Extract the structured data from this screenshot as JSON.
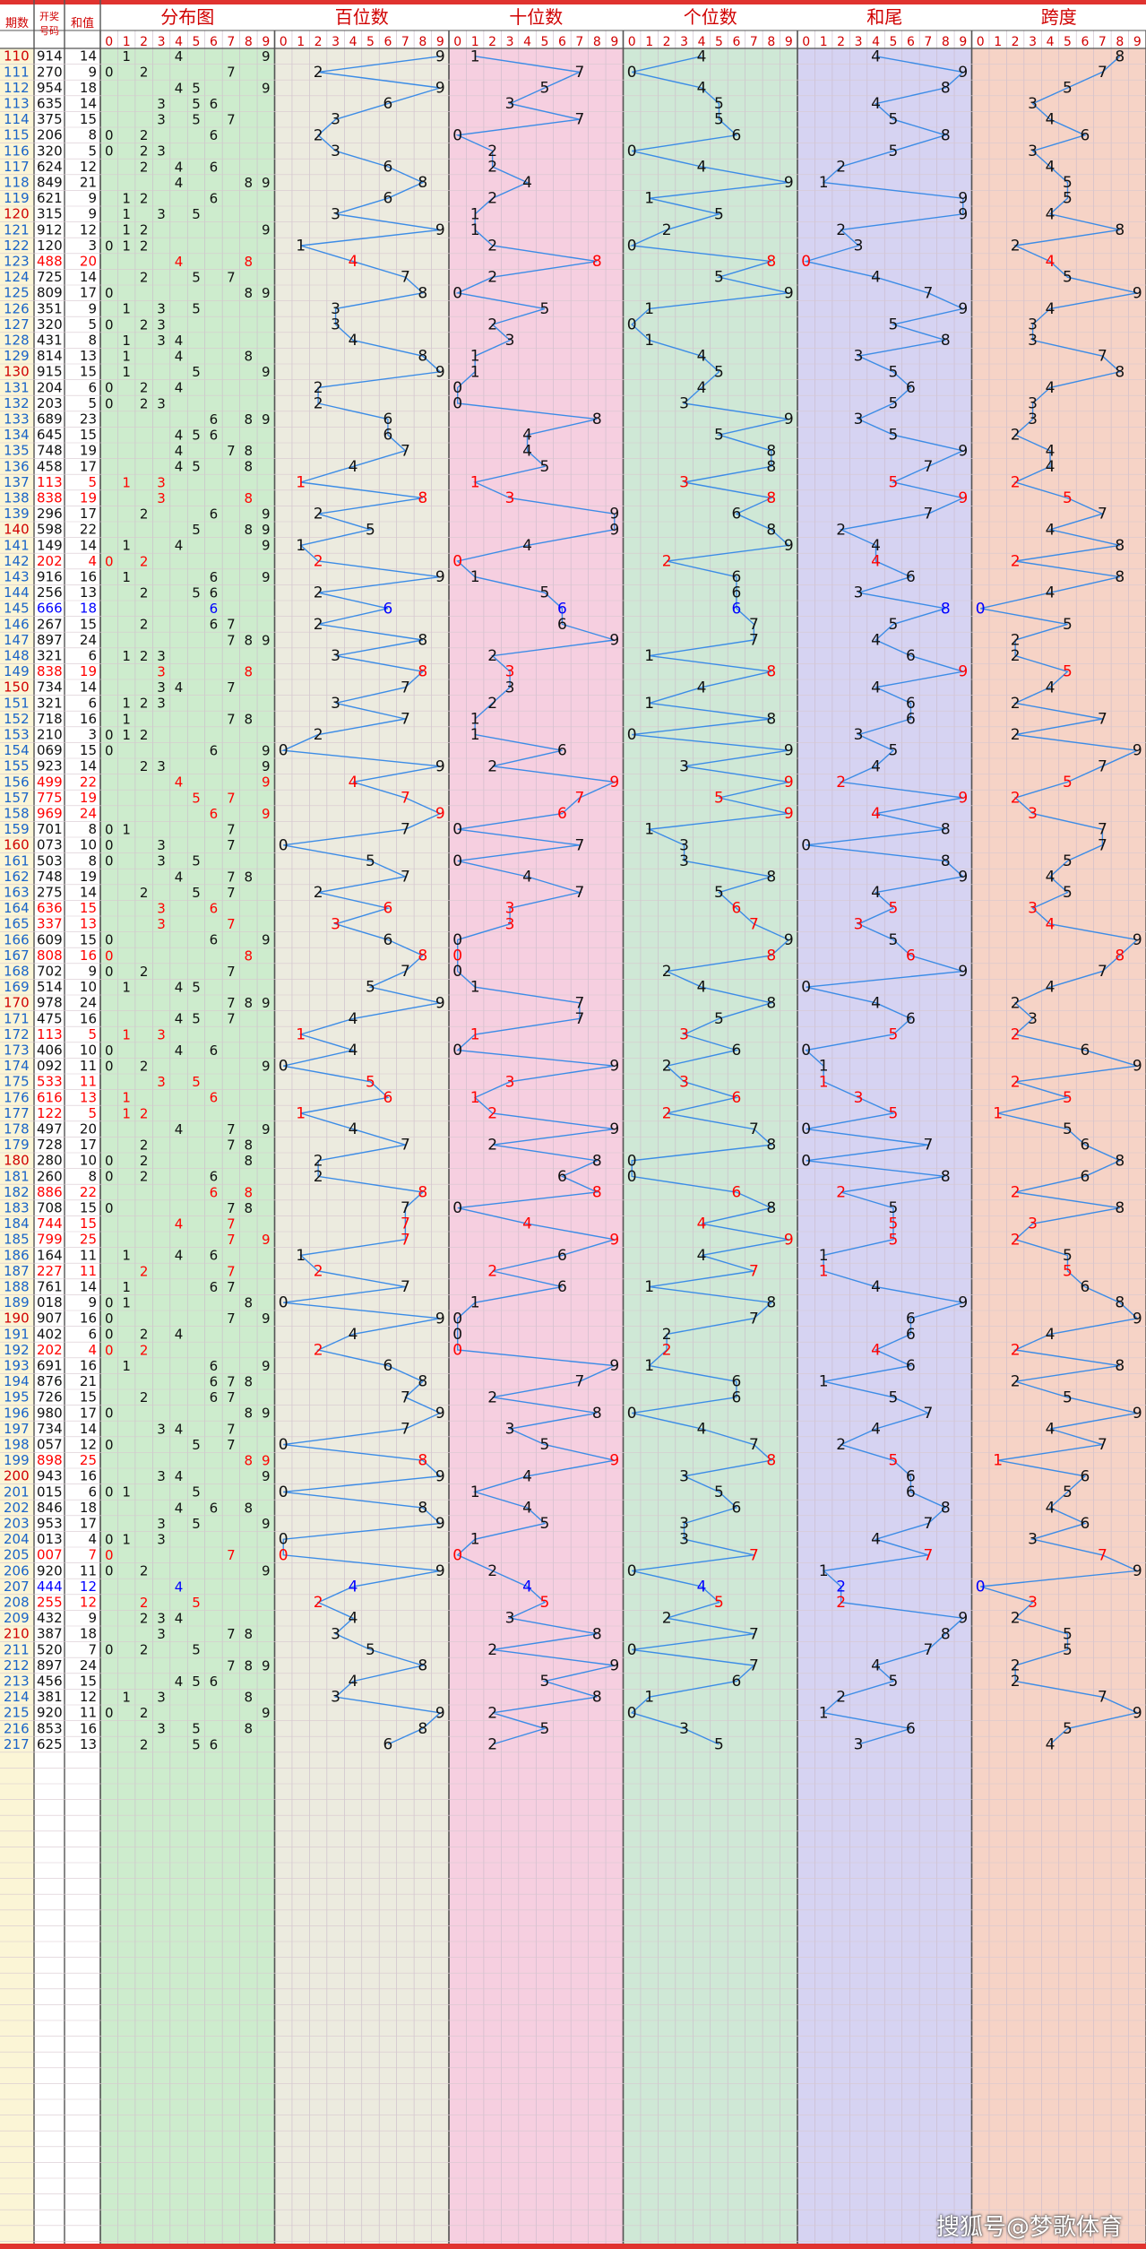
{
  "watermark": "搜狐号@梦歌体育",
  "chart_data": {
    "type": "table",
    "headers": {
      "period": "期数",
      "draw": "开奖号码",
      "sum": "和值",
      "groups": [
        "分布图",
        "百位数",
        "十位数",
        "个位数",
        "和尾",
        "跨度"
      ]
    },
    "digit_labels": [
      "0",
      "1",
      "2",
      "3",
      "4",
      "5",
      "6",
      "7",
      "8",
      "9"
    ],
    "group_colors": [
      "#cdeccd",
      "#ecebdf",
      "#f6cfe0",
      "#cfe8d6",
      "#d6d3f2",
      "#f6d3c6"
    ],
    "highlight_color": "#ff0000",
    "repeat_color": "#0000ff",
    "line_color": "#3c8ce6",
    "rows": [
      {
        "p": "110",
        "d": "914",
        "s": "14"
      },
      {
        "p": "111",
        "d": "270",
        "s": "9"
      },
      {
        "p": "112",
        "d": "954",
        "s": "18"
      },
      {
        "p": "113",
        "d": "635",
        "s": "14"
      },
      {
        "p": "114",
        "d": "375",
        "s": "15"
      },
      {
        "p": "115",
        "d": "206",
        "s": "8"
      },
      {
        "p": "116",
        "d": "320",
        "s": "5"
      },
      {
        "p": "117",
        "d": "624",
        "s": "12"
      },
      {
        "p": "118",
        "d": "849",
        "s": "21"
      },
      {
        "p": "119",
        "d": "621",
        "s": "9"
      },
      {
        "p": "120",
        "d": "315",
        "s": "9"
      },
      {
        "p": "121",
        "d": "912",
        "s": "12"
      },
      {
        "p": "122",
        "d": "120",
        "s": "3"
      },
      {
        "p": "123",
        "d": "488",
        "s": "20"
      },
      {
        "p": "124",
        "d": "725",
        "s": "14"
      },
      {
        "p": "125",
        "d": "809",
        "s": "17"
      },
      {
        "p": "126",
        "d": "351",
        "s": "9"
      },
      {
        "p": "127",
        "d": "320",
        "s": "5"
      },
      {
        "p": "128",
        "d": "431",
        "s": "8"
      },
      {
        "p": "129",
        "d": "814",
        "s": "13"
      },
      {
        "p": "130",
        "d": "915",
        "s": "15"
      },
      {
        "p": "131",
        "d": "204",
        "s": "6"
      },
      {
        "p": "132",
        "d": "203",
        "s": "5"
      },
      {
        "p": "133",
        "d": "689",
        "s": "23"
      },
      {
        "p": "134",
        "d": "645",
        "s": "15"
      },
      {
        "p": "135",
        "d": "748",
        "s": "19"
      },
      {
        "p": "136",
        "d": "458",
        "s": "17"
      },
      {
        "p": "137",
        "d": "113",
        "s": "5"
      },
      {
        "p": "138",
        "d": "838",
        "s": "19"
      },
      {
        "p": "139",
        "d": "296",
        "s": "17"
      },
      {
        "p": "140",
        "d": "598",
        "s": "22"
      },
      {
        "p": "141",
        "d": "149",
        "s": "14"
      },
      {
        "p": "142",
        "d": "202",
        "s": "4"
      },
      {
        "p": "143",
        "d": "916",
        "s": "16"
      },
      {
        "p": "144",
        "d": "256",
        "s": "13"
      },
      {
        "p": "145",
        "d": "666",
        "s": "18"
      },
      {
        "p": "146",
        "d": "267",
        "s": "15"
      },
      {
        "p": "147",
        "d": "897",
        "s": "24"
      },
      {
        "p": "148",
        "d": "321",
        "s": "6"
      },
      {
        "p": "149",
        "d": "838",
        "s": "19"
      },
      {
        "p": "150",
        "d": "734",
        "s": "14"
      },
      {
        "p": "151",
        "d": "321",
        "s": "6"
      },
      {
        "p": "152",
        "d": "718",
        "s": "16"
      },
      {
        "p": "153",
        "d": "210",
        "s": "3"
      },
      {
        "p": "154",
        "d": "069",
        "s": "15"
      },
      {
        "p": "155",
        "d": "923",
        "s": "14"
      },
      {
        "p": "156",
        "d": "499",
        "s": "22"
      },
      {
        "p": "157",
        "d": "775",
        "s": "19"
      },
      {
        "p": "158",
        "d": "969",
        "s": "24"
      },
      {
        "p": "159",
        "d": "701",
        "s": "8"
      },
      {
        "p": "160",
        "d": "073",
        "s": "10"
      },
      {
        "p": "161",
        "d": "503",
        "s": "8"
      },
      {
        "p": "162",
        "d": "748",
        "s": "19"
      },
      {
        "p": "163",
        "d": "275",
        "s": "14"
      },
      {
        "p": "164",
        "d": "636",
        "s": "15"
      },
      {
        "p": "165",
        "d": "337",
        "s": "13"
      },
      {
        "p": "166",
        "d": "609",
        "s": "15"
      },
      {
        "p": "167",
        "d": "808",
        "s": "16"
      },
      {
        "p": "168",
        "d": "702",
        "s": "9"
      },
      {
        "p": "169",
        "d": "514",
        "s": "10"
      },
      {
        "p": "170",
        "d": "978",
        "s": "24"
      },
      {
        "p": "171",
        "d": "475",
        "s": "16"
      },
      {
        "p": "172",
        "d": "113",
        "s": "5"
      },
      {
        "p": "173",
        "d": "406",
        "s": "10"
      },
      {
        "p": "174",
        "d": "092",
        "s": "11"
      },
      {
        "p": "175",
        "d": "533",
        "s": "11"
      },
      {
        "p": "176",
        "d": "616",
        "s": "13"
      },
      {
        "p": "177",
        "d": "122",
        "s": "5"
      },
      {
        "p": "178",
        "d": "497",
        "s": "20"
      },
      {
        "p": "179",
        "d": "728",
        "s": "17"
      },
      {
        "p": "180",
        "d": "280",
        "s": "10"
      },
      {
        "p": "181",
        "d": "260",
        "s": "8"
      },
      {
        "p": "182",
        "d": "886",
        "s": "22"
      },
      {
        "p": "183",
        "d": "708",
        "s": "15"
      },
      {
        "p": "184",
        "d": "744",
        "s": "15"
      },
      {
        "p": "185",
        "d": "799",
        "s": "25"
      },
      {
        "p": "186",
        "d": "164",
        "s": "11"
      },
      {
        "p": "187",
        "d": "227",
        "s": "11"
      },
      {
        "p": "188",
        "d": "761",
        "s": "14"
      },
      {
        "p": "189",
        "d": "018",
        "s": "9"
      },
      {
        "p": "190",
        "d": "907",
        "s": "16"
      },
      {
        "p": "191",
        "d": "402",
        "s": "6"
      },
      {
        "p": "192",
        "d": "202",
        "s": "4"
      },
      {
        "p": "193",
        "d": "691",
        "s": "16"
      },
      {
        "p": "194",
        "d": "876",
        "s": "21"
      },
      {
        "p": "195",
        "d": "726",
        "s": "15"
      },
      {
        "p": "196",
        "d": "980",
        "s": "17"
      },
      {
        "p": "197",
        "d": "734",
        "s": "14"
      },
      {
        "p": "198",
        "d": "057",
        "s": "12"
      },
      {
        "p": "199",
        "d": "898",
        "s": "25"
      },
      {
        "p": "200",
        "d": "943",
        "s": "16"
      },
      {
        "p": "201",
        "d": "015",
        "s": "6"
      },
      {
        "p": "202",
        "d": "846",
        "s": "18"
      },
      {
        "p": "203",
        "d": "953",
        "s": "17"
      },
      {
        "p": "204",
        "d": "013",
        "s": "4"
      },
      {
        "p": "205",
        "d": "007",
        "s": "7"
      },
      {
        "p": "206",
        "d": "920",
        "s": "11"
      },
      {
        "p": "207",
        "d": "444",
        "s": "12"
      },
      {
        "p": "208",
        "d": "255",
        "s": "12"
      },
      {
        "p": "209",
        "d": "432",
        "s": "9"
      },
      {
        "p": "210",
        "d": "387",
        "s": "18"
      },
      {
        "p": "211",
        "d": "520",
        "s": "7"
      },
      {
        "p": "212",
        "d": "897",
        "s": "24"
      },
      {
        "p": "213",
        "d": "456",
        "s": "15"
      },
      {
        "p": "214",
        "d": "381",
        "s": "12"
      },
      {
        "p": "215",
        "d": "920",
        "s": "11"
      },
      {
        "p": "216",
        "d": "853",
        "s": "16"
      },
      {
        "p": "217",
        "d": "625",
        "s": "13"
      }
    ]
  }
}
